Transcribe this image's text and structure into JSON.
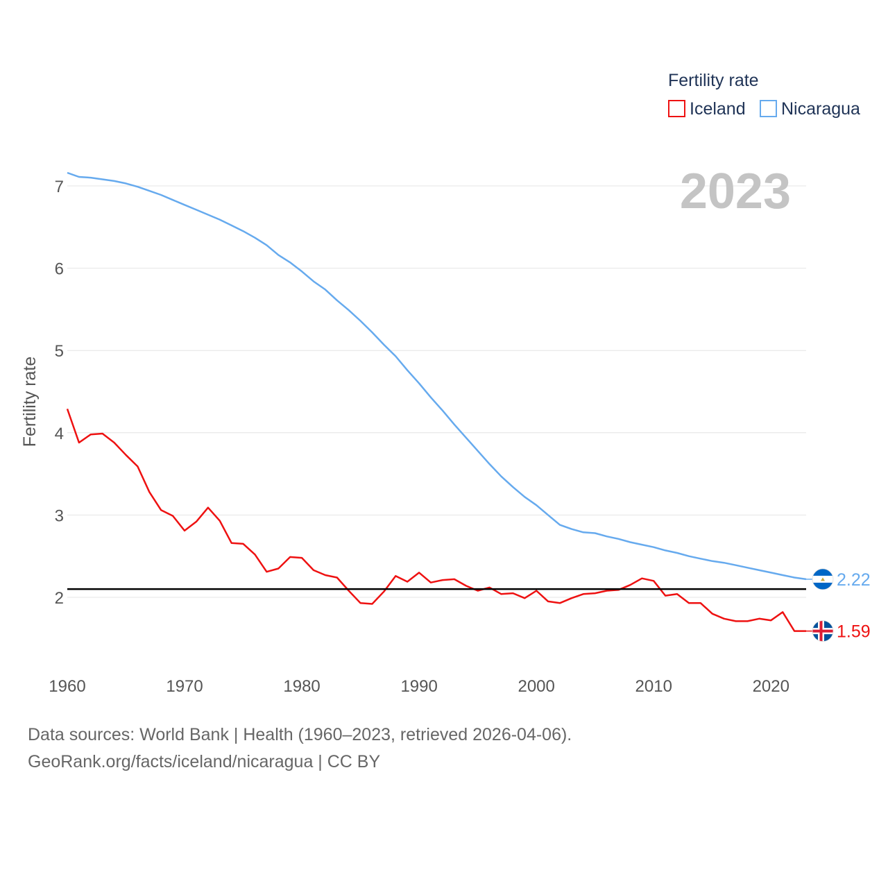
{
  "chart_data": {
    "type": "line",
    "x": [
      1960,
      1961,
      1962,
      1963,
      1964,
      1965,
      1966,
      1967,
      1968,
      1969,
      1970,
      1971,
      1972,
      1973,
      1974,
      1975,
      1976,
      1977,
      1978,
      1979,
      1980,
      1981,
      1982,
      1983,
      1984,
      1985,
      1986,
      1987,
      1988,
      1989,
      1990,
      1991,
      1992,
      1993,
      1994,
      1995,
      1996,
      1997,
      1998,
      1999,
      2000,
      2001,
      2002,
      2003,
      2004,
      2005,
      2006,
      2007,
      2008,
      2009,
      2010,
      2011,
      2012,
      2013,
      2014,
      2015,
      2016,
      2017,
      2018,
      2019,
      2020,
      2021,
      2022,
      2023
    ],
    "series": [
      {
        "name": "Iceland",
        "color": "#ee1111",
        "end_label": "1.59",
        "values": [
          4.29,
          3.88,
          3.98,
          3.99,
          3.88,
          3.73,
          3.59,
          3.28,
          3.06,
          2.99,
          2.81,
          2.92,
          3.09,
          2.93,
          2.66,
          2.65,
          2.52,
          2.31,
          2.35,
          2.49,
          2.48,
          2.33,
          2.27,
          2.24,
          2.08,
          1.93,
          1.92,
          2.07,
          2.26,
          2.19,
          2.3,
          2.18,
          2.21,
          2.22,
          2.14,
          2.08,
          2.12,
          2.04,
          2.05,
          1.99,
          2.08,
          1.95,
          1.93,
          1.99,
          2.04,
          2.05,
          2.08,
          2.09,
          2.15,
          2.23,
          2.2,
          2.02,
          2.04,
          1.93,
          1.93,
          1.8,
          1.74,
          1.71,
          1.71,
          1.74,
          1.72,
          1.82,
          1.59,
          1.59
        ]
      },
      {
        "name": "Nicaragua",
        "color": "#66aaee",
        "end_label": "2.22",
        "values": [
          7.16,
          7.11,
          7.1,
          7.08,
          7.06,
          7.03,
          6.99,
          6.94,
          6.89,
          6.83,
          6.77,
          6.71,
          6.65,
          6.59,
          6.52,
          6.45,
          6.37,
          6.28,
          6.16,
          6.07,
          5.96,
          5.84,
          5.74,
          5.61,
          5.49,
          5.36,
          5.22,
          5.07,
          4.93,
          4.76,
          4.6,
          4.43,
          4.27,
          4.1,
          3.94,
          3.78,
          3.62,
          3.47,
          3.34,
          3.22,
          3.12,
          3.0,
          2.88,
          2.83,
          2.79,
          2.78,
          2.74,
          2.71,
          2.67,
          2.64,
          2.61,
          2.57,
          2.54,
          2.5,
          2.47,
          2.44,
          2.42,
          2.39,
          2.36,
          2.33,
          2.3,
          2.27,
          2.24,
          2.22
        ]
      }
    ],
    "reference_line": 2.1,
    "ylabel": "Fertility rate",
    "xlabel": "",
    "x_ticks": [
      1960,
      1970,
      1980,
      1990,
      2000,
      2010,
      2020
    ],
    "y_ticks": [
      2,
      3,
      4,
      5,
      6,
      7
    ],
    "xlim": [
      1960,
      2023
    ],
    "ylim": [
      1.27,
      7.4
    ],
    "legend_title": "Fertility rate",
    "legend_position": "top-right",
    "year_overlay": "2023",
    "grid": true
  },
  "footer": {
    "source_line": "Data sources: World Bank | Health (1960–2023, retrieved 2026-04-06).",
    "credit_line": "GeoRank.org/facts/iceland/nicaragua | CC BY"
  },
  "flags": {
    "iceland": "iceland-flag-icon",
    "nicaragua": "nicaragua-flag-icon"
  }
}
